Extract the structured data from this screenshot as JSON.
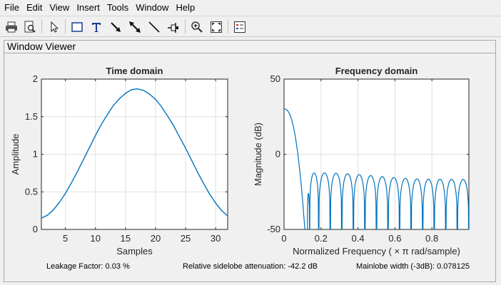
{
  "menu": [
    "File",
    "Edit",
    "View",
    "Insert",
    "Tools",
    "Window",
    "Help"
  ],
  "toolbar": {
    "icons": [
      "print-icon",
      "print-preview-icon",
      "pointer-icon",
      "rectangle-icon",
      "text-icon",
      "arrow-icon",
      "double-arrow-icon",
      "line-icon",
      "pin-icon",
      "zoom-in-icon",
      "fit-icon",
      "legend-icon"
    ]
  },
  "panel": {
    "title": "Window Viewer"
  },
  "stats": {
    "leakage": "Leakage Factor: 0.03 %",
    "sidelobe": "Relative sidelobe attenuation: -42.2 dB",
    "mainlobe": "Mainlobe width (-3dB): 0.078125"
  },
  "colors": {
    "line": "#0072bd",
    "grid": "#e0e0e0",
    "axes": "#262626"
  },
  "chart_data": [
    {
      "type": "line",
      "title": "Time domain",
      "xlabel": "Samples",
      "ylabel": "Amplitude",
      "xlim": [
        1,
        32
      ],
      "ylim": [
        0,
        2
      ],
      "xticks": [
        "5",
        "10",
        "15",
        "20",
        "25",
        "30"
      ],
      "xtick_values": [
        5,
        10,
        15,
        20,
        25,
        30
      ],
      "yticks": [
        "0",
        "0.5",
        "1",
        "1.5",
        "2"
      ],
      "ytick_values": [
        0,
        0.5,
        1,
        1.5,
        2
      ],
      "grid": true,
      "series": [
        {
          "x": [
            1,
            2,
            3,
            4,
            5,
            6,
            7,
            8,
            9,
            10,
            11,
            12,
            13,
            14,
            15,
            16,
            17,
            18,
            19,
            20,
            21,
            22,
            23,
            24,
            25,
            26,
            27,
            28,
            29,
            30,
            31,
            32
          ],
          "y": [
            0.15,
            0.19,
            0.26,
            0.36,
            0.48,
            0.62,
            0.77,
            0.93,
            1.09,
            1.25,
            1.4,
            1.53,
            1.65,
            1.74,
            1.81,
            1.86,
            1.87,
            1.85,
            1.8,
            1.73,
            1.63,
            1.51,
            1.38,
            1.23,
            1.08,
            0.92,
            0.76,
            0.61,
            0.47,
            0.35,
            0.25,
            0.18
          ]
        }
      ]
    },
    {
      "type": "line",
      "title": "Frequency domain",
      "xlabel": "Normalized Frequency  ( × π rad/sample)",
      "ylabel": "Magnitude (dB)",
      "xlim": [
        0,
        1
      ],
      "ylim": [
        -50,
        50
      ],
      "xticks": [
        "0",
        "0.2",
        "0.4",
        "0.6",
        "0.8"
      ],
      "xtick_values": [
        0,
        0.2,
        0.4,
        0.6,
        0.8
      ],
      "yticks": [
        "-50",
        "0",
        "50"
      ],
      "ytick_values": [
        -50,
        0,
        50
      ],
      "grid": true,
      "mainlobe": {
        "peak_db": 30.1,
        "null_x": 0.126
      },
      "sidelobes": {
        "nulls": [
          0.126,
          0.138,
          0.1875,
          0.25,
          0.3125,
          0.375,
          0.4375,
          0.5,
          0.5625,
          0.625,
          0.6875,
          0.75,
          0.8125,
          0.875,
          0.9375,
          1.0
        ],
        "peaks_db": [
          -26,
          -12.5,
          -12.4,
          -12.6,
          -13.0,
          -13.6,
          -14.2,
          -14.9,
          -15.5,
          -16.0,
          -16.4,
          -16.6,
          -16.6,
          -16.7,
          -16.8
        ]
      }
    }
  ]
}
